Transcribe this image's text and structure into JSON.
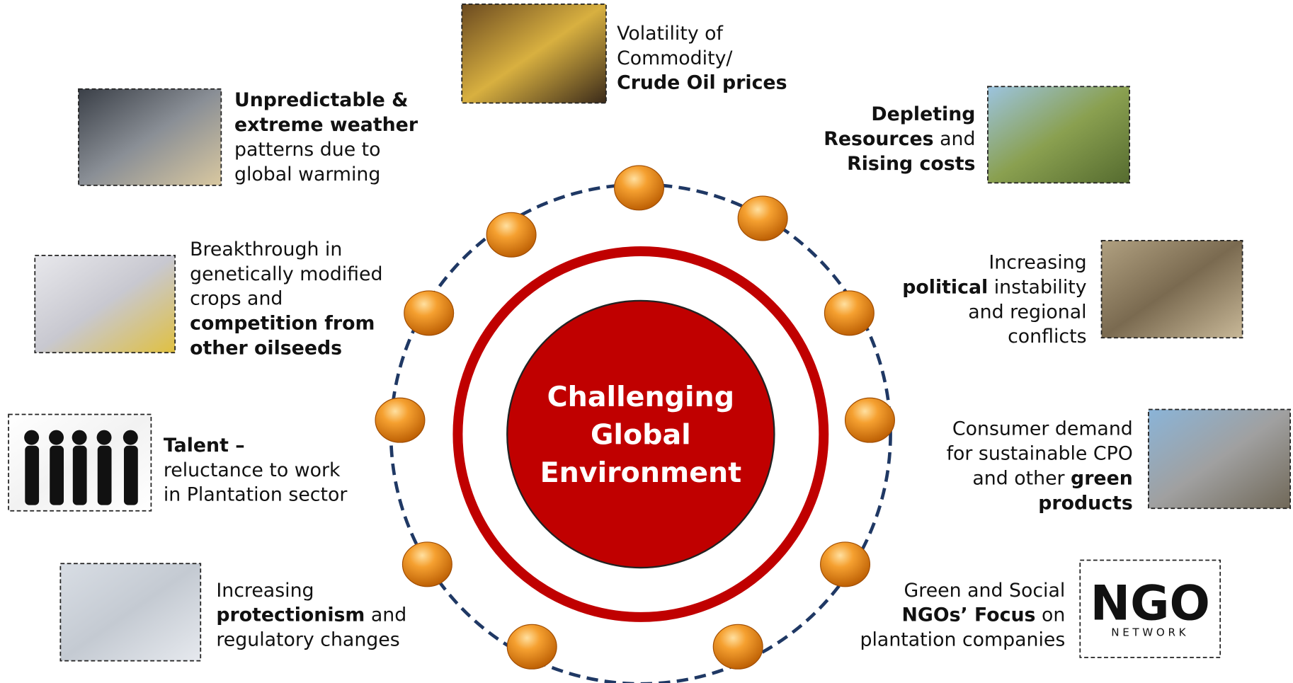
{
  "center": {
    "lines": [
      "Challenging",
      "Global",
      "Environment"
    ]
  },
  "items": [
    {
      "lines": [
        [
          {
            "regular": "Volatility of"
          }
        ],
        [
          {
            "regular": "Commodity/"
          }
        ],
        [
          {
            "bold": "Crude Oil prices"
          }
        ]
      ]
    },
    {
      "lines": [
        [
          {
            "bold": "Unpredictable &"
          }
        ],
        [
          {
            "bold": "extreme weather"
          }
        ],
        [
          {
            "regular": "patterns due to"
          }
        ],
        [
          {
            "regular": "global warming"
          }
        ]
      ]
    },
    {
      "lines": [
        [
          {
            "bold": "Depleting"
          }
        ],
        [
          {
            "bold": "Resources"
          },
          {
            "regular": " and"
          }
        ],
        [
          {
            "bold": "Rising costs"
          }
        ]
      ]
    },
    {
      "lines": [
        [
          {
            "regular": "Breakthrough in"
          }
        ],
        [
          {
            "regular": "genetically modified"
          }
        ],
        [
          {
            "regular": "crops and"
          }
        ],
        [
          {
            "bold": "competition from"
          }
        ],
        [
          {
            "bold": "other oilseeds"
          }
        ]
      ]
    },
    {
      "lines": [
        [
          {
            "regular": "Increasing"
          }
        ],
        [
          {
            "bold": "political"
          },
          {
            "regular": " instability"
          }
        ],
        [
          {
            "regular": "and regional"
          }
        ],
        [
          {
            "regular": "conflicts"
          }
        ]
      ]
    },
    {
      "lines": [
        [
          {
            "bold": "Talent –"
          }
        ],
        [
          {
            "regular": "reluctance to work"
          }
        ],
        [
          {
            "regular": "in Plantation sector"
          }
        ]
      ]
    },
    {
      "lines": [
        [
          {
            "regular": "Consumer demand"
          }
        ],
        [
          {
            "regular": "for sustainable CPO"
          }
        ],
        [
          {
            "regular": "and other "
          },
          {
            "bold": "green"
          }
        ],
        [
          {
            "bold": "products"
          }
        ]
      ]
    },
    {
      "lines": [
        [
          {
            "regular": "Increasing"
          }
        ],
        [
          {
            "bold": "protectionism"
          },
          {
            "regular": " and"
          }
        ],
        [
          {
            "regular": "regulatory changes"
          }
        ]
      ]
    },
    {
      "lines": [
        [
          {
            "regular": "Green and Social"
          }
        ],
        [
          {
            "bold": "NGOs’ Focus"
          },
          {
            "regular": " on"
          }
        ],
        [
          {
            "regular": "plantation companies"
          }
        ]
      ]
    }
  ],
  "ngo_logo": {
    "title": "NGO",
    "subtitle": "NETWORK"
  }
}
